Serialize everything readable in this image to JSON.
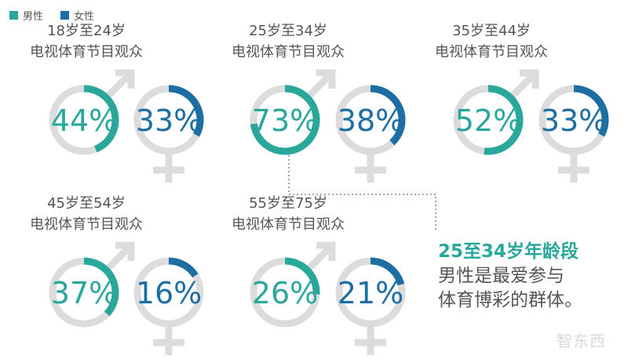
{
  "legend": {
    "male_label": "男性",
    "female_label": "女性",
    "male_color": "#2aa79b",
    "female_color": "#1d6fa3"
  },
  "chart_data": {
    "type": "donut",
    "categories": [
      "18岁至24岁",
      "25岁至34岁",
      "35岁至44岁",
      "45岁至54岁",
      "55岁至75岁"
    ],
    "series": [
      {
        "name": "男性",
        "values": [
          44,
          73,
          52,
          37,
          26
        ]
      },
      {
        "name": "女性",
        "values": [
          33,
          38,
          33,
          16,
          21
        ]
      }
    ],
    "unit": "%",
    "group_subtitle": "电视体育节目观众",
    "track_color": "#dcdcdc"
  },
  "callout": {
    "highlight": "25至34岁年龄段",
    "line1": "男性是最爱参与",
    "line2": "体育博彩的群体。"
  },
  "watermark": "智东西"
}
